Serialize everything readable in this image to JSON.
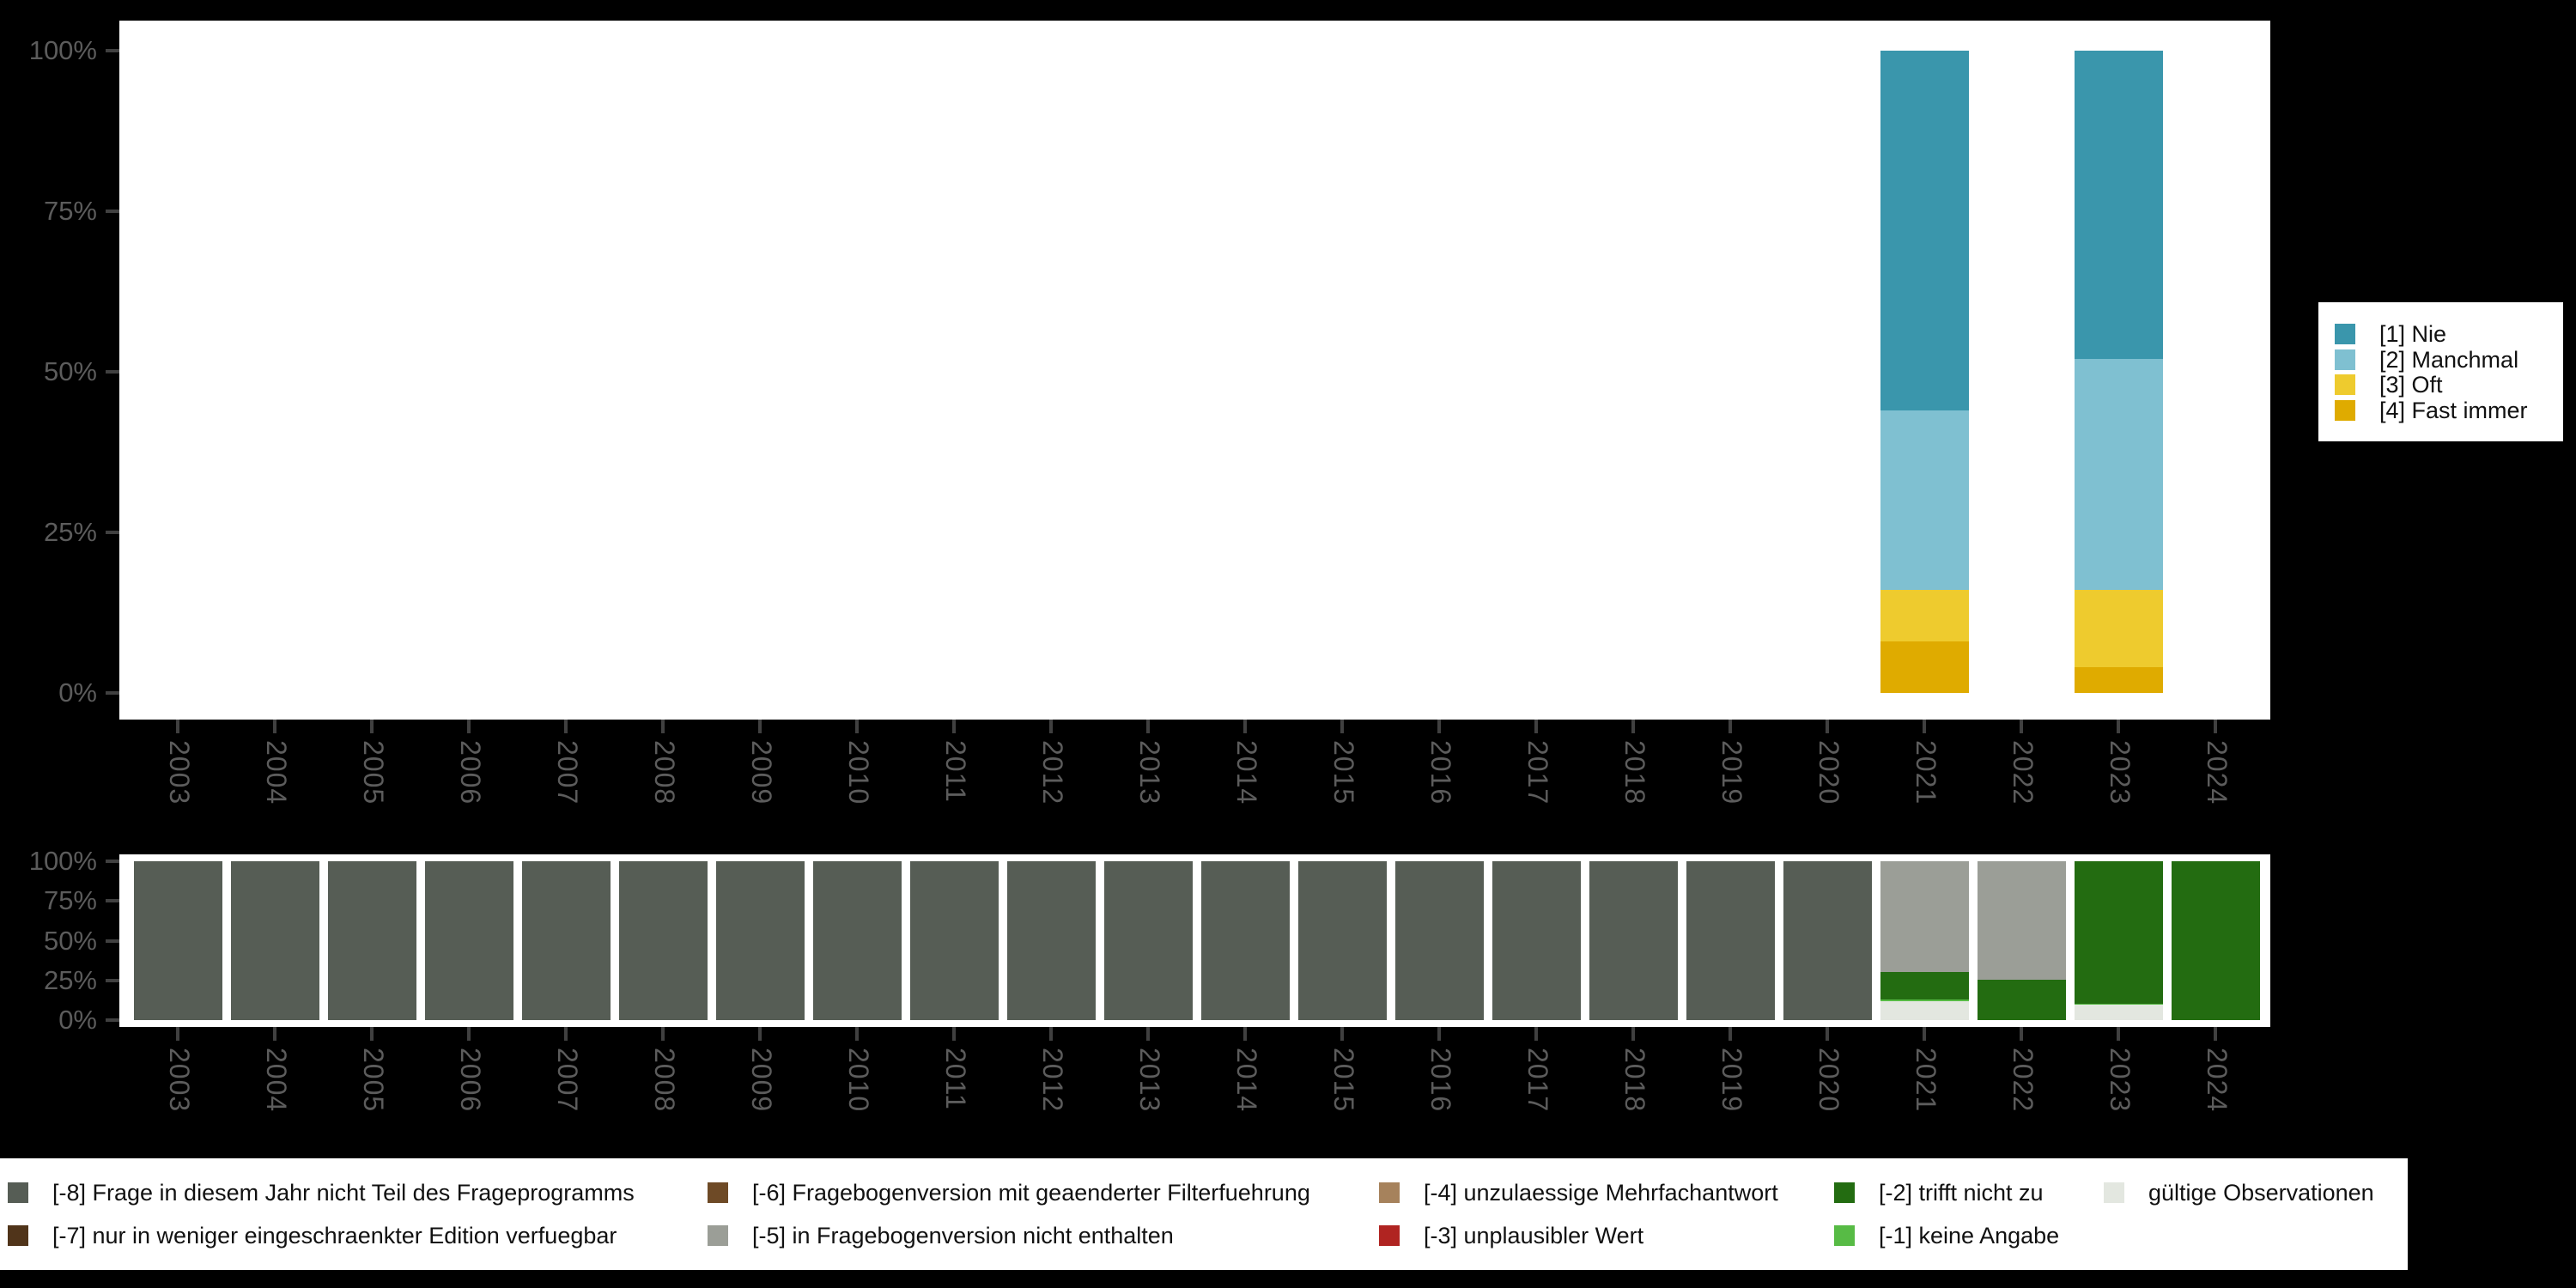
{
  "figure": {
    "background": "#000000",
    "panel_background": "#ffffff",
    "axis_label_color": "#5c5c5c",
    "axis_tick_color": "#404040",
    "legend_background": "#ffffff",
    "legend_text_color": "#111111"
  },
  "chart_data": [
    {
      "id": "top-responses",
      "type": "bar",
      "stacked": true,
      "unit": "percent",
      "title": "",
      "xlabel": "",
      "ylabel": "",
      "ylim": [
        0,
        100
      ],
      "grid": false,
      "legend_position": "right",
      "y_tick_values": [
        0,
        25,
        50,
        75,
        100
      ],
      "y_tick_labels": [
        "0%",
        "25%",
        "50%",
        "75%",
        "100%"
      ],
      "categories": [
        "2003",
        "2004",
        "2005",
        "2006",
        "2007",
        "2008",
        "2009",
        "2010",
        "2011",
        "2012",
        "2013",
        "2014",
        "2015",
        "2016",
        "2017",
        "2018",
        "2019",
        "2020",
        "2021",
        "2022",
        "2023",
        "2024"
      ],
      "series": [
        {
          "name": "[4] Fast immer",
          "color": "#dfab00",
          "values": [
            0,
            0,
            0,
            0,
            0,
            0,
            0,
            0,
            0,
            0,
            0,
            0,
            0,
            0,
            0,
            0,
            0,
            0,
            8,
            0,
            4,
            0
          ]
        },
        {
          "name": "[3] Oft",
          "color": "#eecb2e",
          "values": [
            0,
            0,
            0,
            0,
            0,
            0,
            0,
            0,
            0,
            0,
            0,
            0,
            0,
            0,
            0,
            0,
            0,
            0,
            8,
            0,
            12,
            0
          ]
        },
        {
          "name": "[2] Manchmal",
          "color": "#7fc0d1",
          "values": [
            0,
            0,
            0,
            0,
            0,
            0,
            0,
            0,
            0,
            0,
            0,
            0,
            0,
            0,
            0,
            0,
            0,
            0,
            28,
            0,
            36,
            0
          ]
        },
        {
          "name": "[1] Nie",
          "color": "#3a96ac",
          "values": [
            0,
            0,
            0,
            0,
            0,
            0,
            0,
            0,
            0,
            0,
            0,
            0,
            0,
            0,
            0,
            0,
            0,
            0,
            56,
            0,
            48,
            0
          ]
        }
      ],
      "legend_items": [
        {
          "label": "[1] Nie",
          "color": "#3a96ac"
        },
        {
          "label": "[2] Manchmal",
          "color": "#7fc0d1"
        },
        {
          "label": "[3] Oft",
          "color": "#eecb2e"
        },
        {
          "label": "[4] Fast immer",
          "color": "#dfab00"
        }
      ]
    },
    {
      "id": "bottom-missings",
      "type": "bar",
      "stacked": true,
      "unit": "percent",
      "title": "",
      "xlabel": "",
      "ylabel": "",
      "ylim": [
        0,
        100
      ],
      "grid": false,
      "legend_position": "bottom",
      "y_tick_values": [
        0,
        25,
        50,
        75,
        100
      ],
      "y_tick_labels": [
        "0%",
        "25%",
        "50%",
        "75%",
        "100%"
      ],
      "categories": [
        "2003",
        "2004",
        "2005",
        "2006",
        "2007",
        "2008",
        "2009",
        "2010",
        "2011",
        "2012",
        "2013",
        "2014",
        "2015",
        "2016",
        "2017",
        "2018",
        "2019",
        "2020",
        "2021",
        "2022",
        "2023",
        "2024"
      ],
      "series": [
        {
          "name": "gültige Observationen",
          "color": "#e3e7e0",
          "values": [
            0,
            0,
            0,
            0,
            0,
            0,
            0,
            0,
            0,
            0,
            0,
            0,
            0,
            0,
            0,
            0,
            0,
            0,
            12,
            0,
            9.5,
            0
          ]
        },
        {
          "name": "[-1] keine Angabe",
          "color": "#57bb45",
          "values": [
            0,
            0,
            0,
            0,
            0,
            0,
            0,
            0,
            0,
            0,
            0,
            0,
            0,
            0,
            0,
            0,
            0,
            0,
            1,
            0,
            1,
            0
          ]
        },
        {
          "name": "[-2] trifft nicht zu",
          "color": "#236c11",
          "values": [
            0,
            0,
            0,
            0,
            0,
            0,
            0,
            0,
            0,
            0,
            0,
            0,
            0,
            0,
            0,
            0,
            0,
            0,
            17.5,
            25.5,
            89.5,
            100
          ]
        },
        {
          "name": "[-3] unplausibler Wert",
          "color": "#b02421",
          "values": [
            0,
            0,
            0,
            0,
            0,
            0,
            0,
            0,
            0,
            0,
            0,
            0,
            0,
            0,
            0,
            0,
            0,
            0,
            0,
            0,
            0,
            0
          ]
        },
        {
          "name": "[-4] unzulaessige Mehrfachantwort",
          "color": "#a6825c",
          "values": [
            0,
            0,
            0,
            0,
            0,
            0,
            0,
            0,
            0,
            0,
            0,
            0,
            0,
            0,
            0,
            0,
            0,
            0,
            0,
            0,
            0,
            0
          ]
        },
        {
          "name": "[-5] in Fragebogenversion nicht enthalten",
          "color": "#9b9e97",
          "values": [
            0,
            0,
            0,
            0,
            0,
            0,
            0,
            0,
            0,
            0,
            0,
            0,
            0,
            0,
            0,
            0,
            0,
            0,
            69.5,
            74.5,
            0,
            0
          ]
        },
        {
          "name": "[-6] Fragebogenversion mit geaenderter Filterfuehrung",
          "color": "#6e4a26",
          "values": [
            0,
            0,
            0,
            0,
            0,
            0,
            0,
            0,
            0,
            0,
            0,
            0,
            0,
            0,
            0,
            0,
            0,
            0,
            0,
            0,
            0,
            0
          ]
        },
        {
          "name": "[-7] nur in weniger eingeschraenkter Edition verfuegbar",
          "color": "#50341a",
          "values": [
            0,
            0,
            0,
            0,
            0,
            0,
            0,
            0,
            0,
            0,
            0,
            0,
            0,
            0,
            0,
            0,
            0,
            0,
            0,
            0,
            0,
            0
          ]
        },
        {
          "name": "[-8] Frage in diesem Jahr nicht Teil des Frageprogramms",
          "color": "#565d55",
          "values": [
            100,
            100,
            100,
            100,
            100,
            100,
            100,
            100,
            100,
            100,
            100,
            100,
            100,
            100,
            100,
            100,
            100,
            100,
            0,
            0,
            0,
            0
          ]
        }
      ]
    }
  ],
  "legend_missing": {
    "items": [
      {
        "label": "[-8] Frage in diesem Jahr nicht Teil des Frageprogramms",
        "color": "#565d55",
        "col": 0,
        "row": 0
      },
      {
        "label": "[-7] nur in weniger eingeschraenkter Edition verfuegbar",
        "color": "#50341a",
        "col": 0,
        "row": 1
      },
      {
        "label": "[-6] Fragebogenversion mit geaenderter Filterfuehrung",
        "color": "#6e4a26",
        "col": 1,
        "row": 0
      },
      {
        "label": "[-5] in Fragebogenversion nicht enthalten",
        "color": "#9b9e97",
        "col": 1,
        "row": 1
      },
      {
        "label": "[-4] unzulaessige Mehrfachantwort",
        "color": "#a6825c",
        "col": 2,
        "row": 0
      },
      {
        "label": "[-3] unplausibler Wert",
        "color": "#b02421",
        "col": 2,
        "row": 1
      },
      {
        "label": "[-2] trifft nicht zu",
        "color": "#236c11",
        "col": 3,
        "row": 0
      },
      {
        "label": "[-1] keine Angabe",
        "color": "#57bb45",
        "col": 3,
        "row": 1
      },
      {
        "label": "gültige Observationen",
        "color": "#e3e7e0",
        "col": 4,
        "row": 0
      }
    ]
  }
}
